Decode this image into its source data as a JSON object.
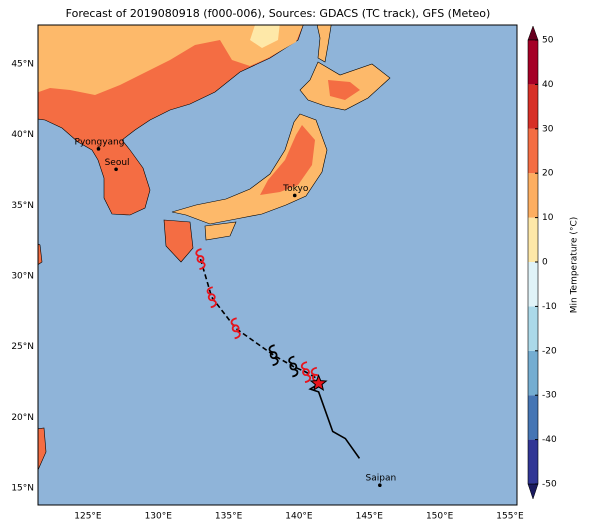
{
  "title": "Forecast of 2019080918 (f000-006), Sources: GDACS (TC track), GFS (Meteo)",
  "map": {
    "lonlim": [
      121.45,
      155.5
    ],
    "latlim": [
      13.8,
      47.76
    ],
    "lonticks": [
      {
        "value": 125,
        "label": "125°E"
      },
      {
        "value": 130,
        "label": "130°E"
      },
      {
        "value": 135,
        "label": "135°E"
      },
      {
        "value": 140,
        "label": "140°E"
      },
      {
        "value": 145,
        "label": "145°E"
      },
      {
        "value": 150,
        "label": "150°E"
      },
      {
        "value": 155,
        "label": "155°E"
      }
    ],
    "latticks": [
      {
        "value": 15,
        "label": "15°N"
      },
      {
        "value": 20,
        "label": "20°N"
      },
      {
        "value": 25,
        "label": "25°N"
      },
      {
        "value": 30,
        "label": "30°N"
      },
      {
        "value": 35,
        "label": "35°N"
      },
      {
        "value": 40,
        "label": "40°N"
      },
      {
        "value": 45,
        "label": "45°N"
      }
    ],
    "grid": true
  },
  "cities": [
    {
      "name": "Pyongyang",
      "lon": 125.75,
      "lat": 39.0
    },
    {
      "name": "Seoul",
      "lon": 127.0,
      "lat": 37.55
    },
    {
      "name": "Tokyo",
      "lon": 139.7,
      "lat": 35.7
    },
    {
      "name": "Saipan",
      "lon": 145.75,
      "lat": 15.2
    }
  ],
  "track": {
    "forecast": [
      {
        "lon": 133.0,
        "lat": 31.2,
        "color": "#e8141c"
      },
      {
        "lon": 133.8,
        "lat": 28.5,
        "color": "#e8141c"
      },
      {
        "lon": 135.5,
        "lat": 26.3,
        "color": "#e8141c"
      },
      {
        "lon": 138.2,
        "lat": 24.4,
        "color": "#000000"
      },
      {
        "lon": 139.6,
        "lat": 23.6,
        "color": "#000000"
      },
      {
        "lon": 140.5,
        "lat": 23.2,
        "color": "#e8141c"
      },
      {
        "lon": 141.2,
        "lat": 22.8,
        "color": "#e8141c"
      }
    ],
    "current": {
      "lon": 141.4,
      "lat": 22.4
    },
    "past": [
      {
        "lon": 141.3,
        "lat": 22.3
      },
      {
        "lon": 140.8,
        "lat": 22.0
      },
      {
        "lon": 141.4,
        "lat": 21.8
      },
      {
        "lon": 142.4,
        "lat": 19.0
      },
      {
        "lon": 143.3,
        "lat": 18.5
      },
      {
        "lon": 144.3,
        "lat": 17.1
      }
    ]
  },
  "colorbar": {
    "label": "Min Temperature (°C)",
    "lim": [
      -50,
      50
    ],
    "ticks": [
      50,
      40,
      30,
      20,
      10,
      0,
      -10,
      -20,
      -30,
      -40,
      -50
    ],
    "colors": [
      "#313695",
      "#4575b4",
      "#74add1",
      "#abd9e9",
      "#e0f3f8",
      "#fee8a8",
      "#fdae61",
      "#f46d43",
      "#d73027",
      "#a50026"
    ]
  }
}
